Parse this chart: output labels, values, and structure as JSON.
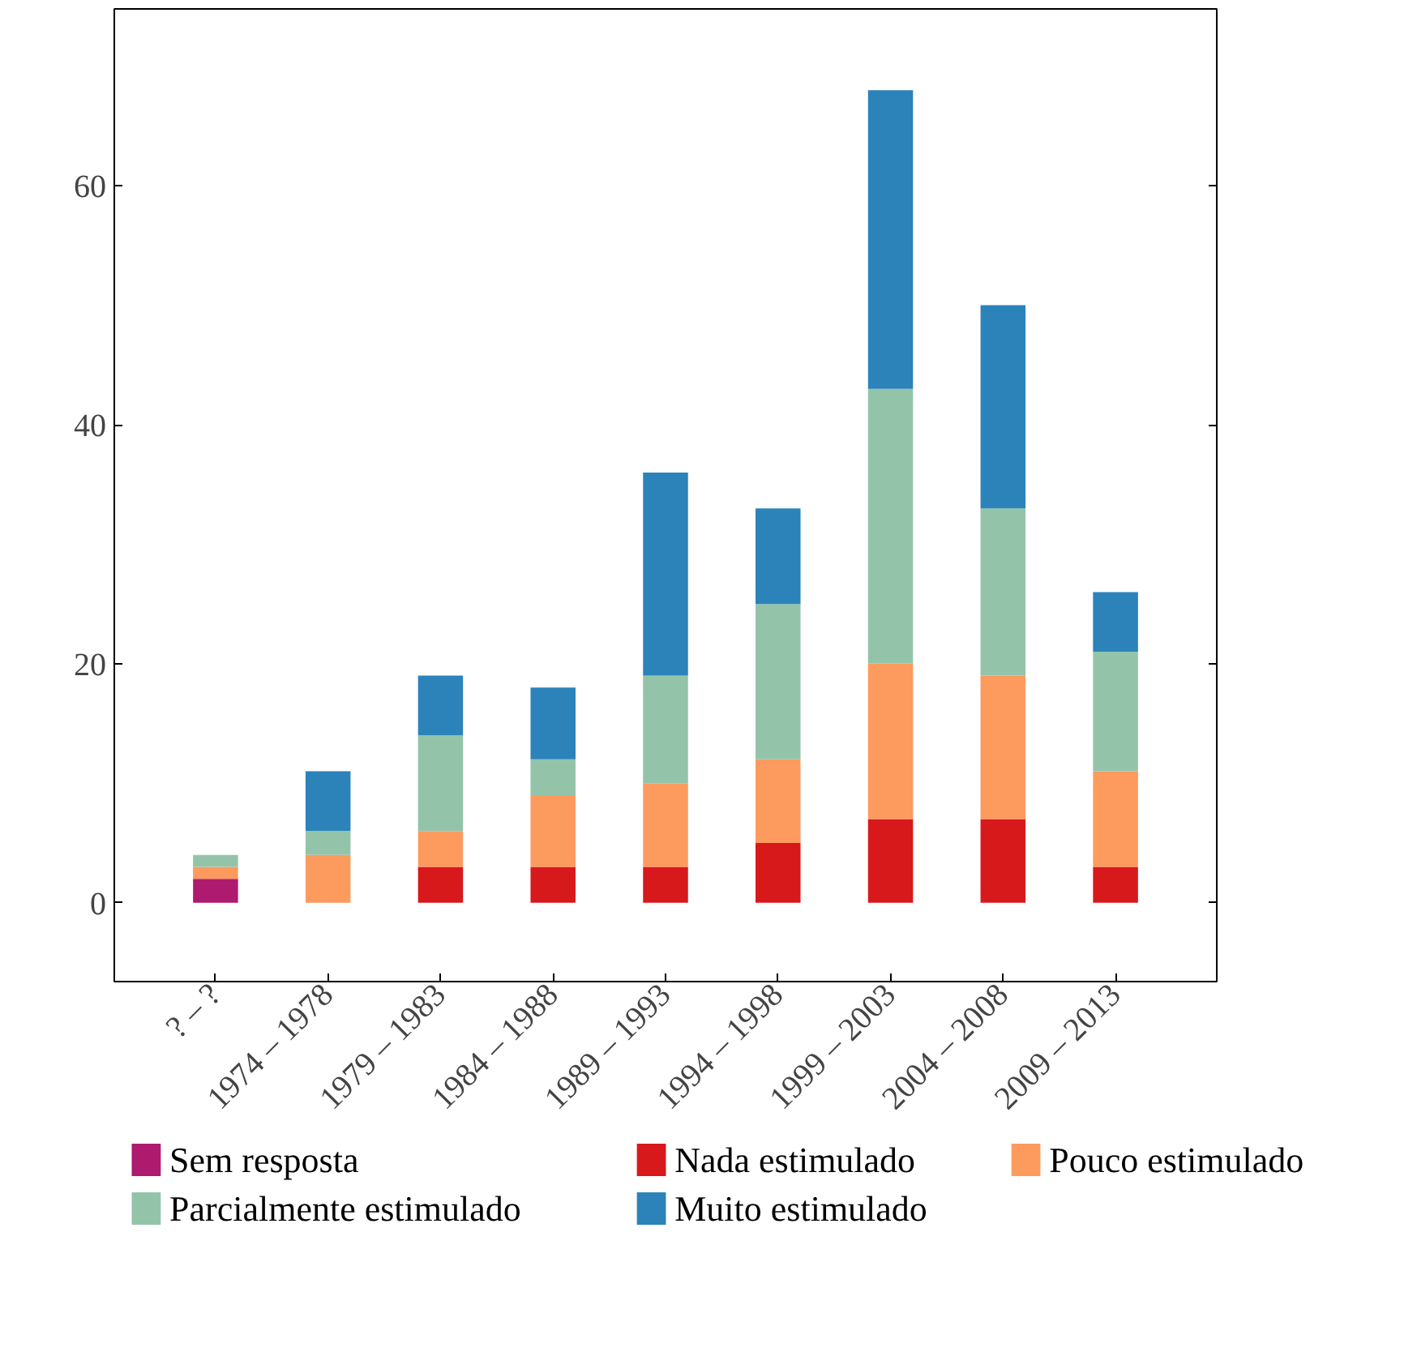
{
  "chart_data": {
    "type": "bar",
    "stacked": true,
    "categories": [
      "? – ?",
      "1974 – 1978",
      "1979 – 1983",
      "1984 – 1988",
      "1989 – 1993",
      "1994 – 1998",
      "1999 – 2003",
      "2004 – 2008",
      "2009 – 2013"
    ],
    "series": [
      {
        "name": "Sem resposta",
        "color": "#ae1a6e",
        "values": [
          2,
          0,
          0,
          0,
          0,
          0,
          0,
          0,
          0
        ]
      },
      {
        "name": "Nada estimulado",
        "color": "#d7191c",
        "values": [
          0,
          0,
          3,
          3,
          3,
          5,
          7,
          7,
          3
        ]
      },
      {
        "name": "Pouco estimulado",
        "color": "#fd9a5e",
        "values": [
          1,
          4,
          3,
          6,
          7,
          7,
          13,
          12,
          8
        ]
      },
      {
        "name": "Parcialmente estimulado",
        "color": "#93c4aa",
        "values": [
          1,
          2,
          8,
          3,
          9,
          13,
          23,
          14,
          10
        ]
      },
      {
        "name": "Muito estimulado",
        "color": "#2b83ba",
        "values": [
          0,
          5,
          5,
          6,
          17,
          8,
          25,
          17,
          5
        ]
      }
    ],
    "ylim": [
      -6.6,
      74.8
    ],
    "yticks": [
      0,
      20,
      40,
      60
    ],
    "grid": false,
    "legend": "bottom"
  }
}
